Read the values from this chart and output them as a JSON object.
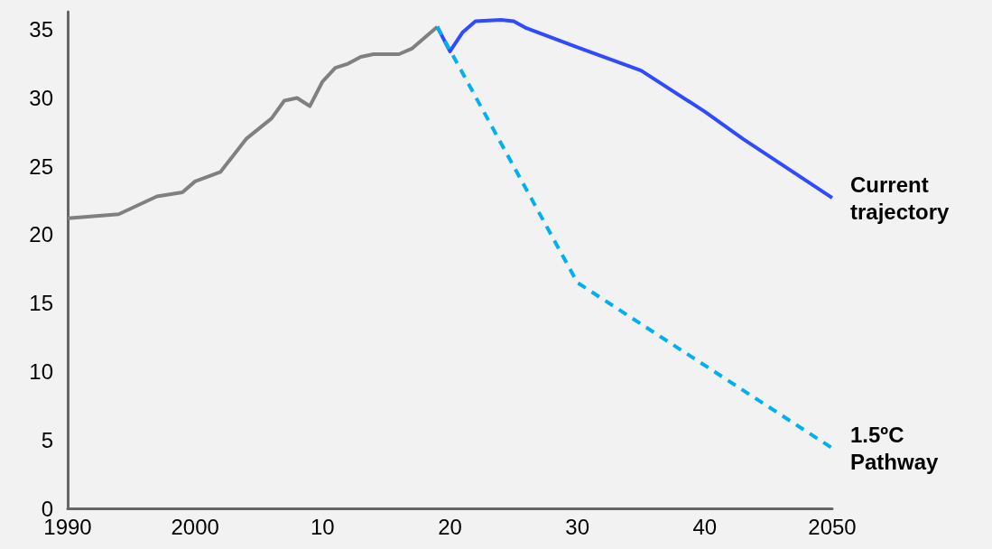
{
  "chart_data": {
    "type": "line",
    "series": [
      {
        "color": "#808080",
        "line_style": "solid",
        "x": [
          1990,
          1994,
          1997,
          1999,
          2000,
          2002,
          2004,
          2006,
          2007,
          2008,
          2009,
          2010,
          2011,
          2012,
          2013,
          2014,
          2016,
          2017,
          2019
        ],
        "values": [
          21.2,
          21.5,
          22.8,
          23.1,
          23.9,
          24.6,
          27.0,
          28.5,
          29.8,
          30.0,
          29.4,
          31.2,
          32.2,
          32.5,
          33.0,
          33.2,
          33.2,
          33.6,
          35.2
        ]
      },
      {
        "name": "Current trajectory",
        "color": "#2f4bff",
        "line_style": "solid",
        "x": [
          2019,
          2020,
          2021,
          2022,
          2024,
          2025,
          2026,
          2030,
          2035,
          2040,
          2043,
          2050
        ],
        "values": [
          35.2,
          33.4,
          34.8,
          35.6,
          35.7,
          35.6,
          35.1,
          33.7,
          32.0,
          29.0,
          27.0,
          22.7
        ]
      },
      {
        "name": "1.5ºC Pathway",
        "color": "#00b0f0",
        "line_style": "dashed",
        "x": [
          2019,
          2030,
          2050
        ],
        "values": [
          35.2,
          16.5,
          4.4
        ]
      }
    ],
    "xlim": [
      1990,
      2050
    ],
    "xticks": [
      1990,
      2000,
      {
        "value": 2010,
        "label": "10"
      },
      {
        "value": 2020,
        "label": "20"
      },
      {
        "value": 2030,
        "label": "30"
      },
      {
        "value": 2040,
        "label": "40"
      },
      2050
    ],
    "ylim": [
      0,
      36.3
    ],
    "yticks": [
      0,
      5,
      10,
      15,
      20,
      25,
      30,
      35
    ],
    "grid": false,
    "legend": false,
    "marker": "none"
  }
}
